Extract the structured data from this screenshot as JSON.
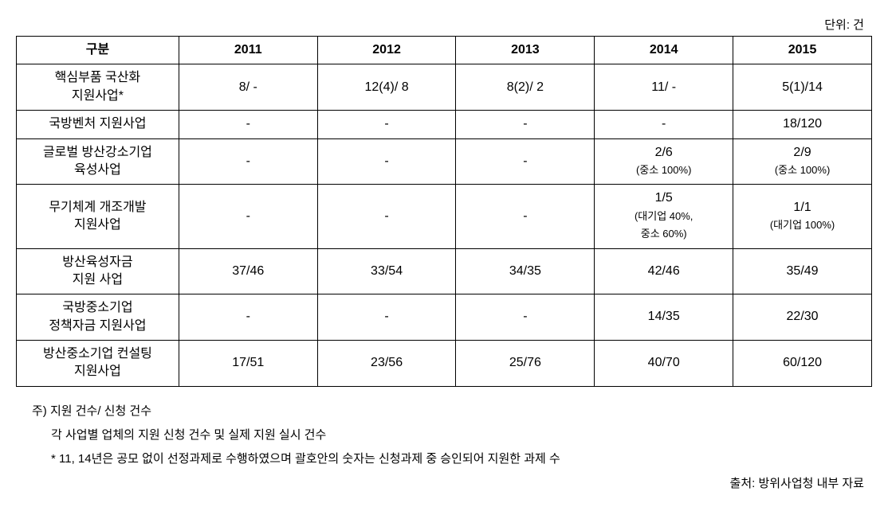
{
  "unit_label": "단위: 건",
  "table": {
    "headers": [
      "구분",
      "2011",
      "2012",
      "2013",
      "2014",
      "2015"
    ],
    "rows": [
      {
        "label": "핵심부품 국산화\n지원사업*",
        "cells": [
          {
            "main": "8/ -"
          },
          {
            "main": "12(4)/ 8"
          },
          {
            "main": "8(2)/ 2"
          },
          {
            "main": "11/ -"
          },
          {
            "main": "5(1)/14"
          }
        ]
      },
      {
        "label": "국방벤처 지원사업",
        "cells": [
          {
            "main": "-"
          },
          {
            "main": "-"
          },
          {
            "main": "-"
          },
          {
            "main": "-"
          },
          {
            "main": "18/120"
          }
        ]
      },
      {
        "label": "글로벌 방산강소기업\n육성사업",
        "cells": [
          {
            "main": "-"
          },
          {
            "main": "-"
          },
          {
            "main": "-"
          },
          {
            "main": "2/6",
            "sub": "(중소 100%)"
          },
          {
            "main": "2/9",
            "sub": "(중소 100%)"
          }
        ]
      },
      {
        "label": "무기체계 개조개발\n지원사업",
        "cells": [
          {
            "main": "-"
          },
          {
            "main": "-"
          },
          {
            "main": "-"
          },
          {
            "main": "1/5",
            "sub": "(대기업 40%,\n중소 60%)"
          },
          {
            "main": "1/1",
            "sub": "(대기업 100%)"
          }
        ]
      },
      {
        "label": "방산육성자금\n지원 사업",
        "cells": [
          {
            "main": "37/46"
          },
          {
            "main": "33/54"
          },
          {
            "main": "34/35"
          },
          {
            "main": "42/46"
          },
          {
            "main": "35/49"
          }
        ]
      },
      {
        "label": "국방중소기업\n정책자금 지원사업",
        "cells": [
          {
            "main": "-"
          },
          {
            "main": "-"
          },
          {
            "main": "-"
          },
          {
            "main": "14/35"
          },
          {
            "main": "22/30"
          }
        ]
      },
      {
        "label": "방산중소기업 컨설팅\n지원사업",
        "cells": [
          {
            "main": "17/51"
          },
          {
            "main": "23/56"
          },
          {
            "main": "25/76"
          },
          {
            "main": "40/70"
          },
          {
            "main": "60/120"
          }
        ]
      }
    ]
  },
  "footnotes": {
    "line1": "주) 지원 건수/ 신청 건수",
    "line2": "각 사업별 업체의 지원 신청 건수 및 실제 지원 실시 건수",
    "line3": "* 11, 14년은 공모 없이 선정과제로 수행하였으며 괄호안의 숫자는 신청과제 중 승인되어 지원한 과제 수"
  },
  "source": "출처: 방위사업청 내부 자료"
}
